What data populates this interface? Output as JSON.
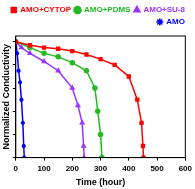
{
  "chart_data": {
    "type": "line",
    "x_label": "Time (hour)",
    "y_label": "Normalized Conductivity",
    "xlim": [
      0,
      600
    ],
    "xticks": [
      0,
      100,
      200,
      300,
      400,
      500,
      600
    ],
    "ylim": [
      0,
      1.05
    ],
    "yticks": [
      0,
      0.2,
      0.4,
      0.6,
      0.8,
      1
    ],
    "grid": false,
    "legend": "top",
    "tick_labels": "x",
    "series": [
      {
        "name": "AMO+CYTOP",
        "color": "#ff0000",
        "marker": "square",
        "x": [
          0,
          50,
          100,
          150,
          200,
          250,
          300,
          350,
          400,
          430,
          445,
          450,
          452
        ],
        "values": [
          1,
          0.97,
          0.95,
          0.94,
          0.92,
          0.89,
          0.85,
          0.8,
          0.7,
          0.5,
          0.3,
          0.1,
          0
        ]
      },
      {
        "name": "AMO+PDMS",
        "color": "#22bb22",
        "marker": "circle",
        "x": [
          0,
          50,
          100,
          150,
          200,
          250,
          280,
          290,
          300,
          305
        ],
        "values": [
          1,
          0.95,
          0.9,
          0.87,
          0.82,
          0.75,
          0.6,
          0.4,
          0.2,
          0
        ]
      },
      {
        "name": "AMO+SU-8",
        "color": "#9933ff",
        "marker": "triangle",
        "x": [
          0,
          20,
          50,
          100,
          150,
          200,
          220,
          235,
          240,
          242
        ],
        "values": [
          1,
          0.95,
          0.9,
          0.83,
          0.75,
          0.6,
          0.45,
          0.3,
          0.1,
          0
        ]
      },
      {
        "name": "AMO",
        "color": "#0000ff",
        "marker": "star",
        "x": [
          0,
          5,
          10,
          15,
          20,
          25,
          28,
          30
        ],
        "values": [
          1,
          0.9,
          0.75,
          0.65,
          0.5,
          0.3,
          0.1,
          0
        ]
      }
    ]
  }
}
